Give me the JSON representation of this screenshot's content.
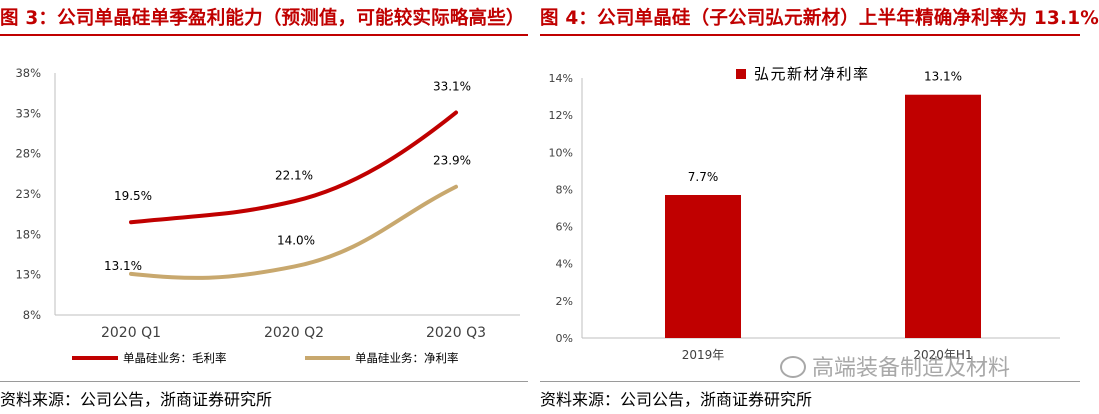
{
  "figures": [
    {
      "title": "图 3：公司单晶硅单季盈利能力（预测值，可能较实际略高些）",
      "source": "资料来源：公司公告，浙商证券研究所"
    },
    {
      "title": "图 4：公司单晶硅（子公司弘元新材）上半年精确净利率为 13.1%",
      "source": "资料来源：公司公告，浙商证券研究所"
    }
  ],
  "watermark": "高端装备制造及材料",
  "colors": {
    "accent_red": "#c00000",
    "line_gold": "#c8a86e",
    "grid": "#d9d9d9",
    "axis": "#bfbfbf"
  },
  "chart_data": [
    {
      "type": "line",
      "categories": [
        "2020 Q1",
        "2020 Q2",
        "2020 Q3"
      ],
      "series": [
        {
          "name": "单晶硅业务：毛利率",
          "values": [
            19.5,
            22.1,
            33.1
          ],
          "labels": [
            "19.5%",
            "22.1%",
            "33.1%"
          ],
          "color": "#c00000"
        },
        {
          "name": "单晶硅业务：净利率",
          "values": [
            13.1,
            14.0,
            23.9
          ],
          "labels": [
            "13.1%",
            "14.0%",
            "23.9%"
          ],
          "color": "#c8a86e"
        }
      ],
      "yticks": [
        "8%",
        "13%",
        "18%",
        "23%",
        "28%",
        "33%",
        "38%"
      ],
      "ylim": [
        8,
        38
      ],
      "smooth": true,
      "grid": false,
      "legend": "bottom"
    },
    {
      "type": "bar",
      "categories": [
        "2019年",
        "2020年H1"
      ],
      "series": [
        {
          "name": "弘元新材净利率",
          "values": [
            7.7,
            13.1
          ],
          "labels": [
            "7.7%",
            "13.1%"
          ],
          "color": "#c00000"
        }
      ],
      "yticks": [
        "0%",
        "2%",
        "4%",
        "6%",
        "8%",
        "10%",
        "12%",
        "14%"
      ],
      "ylim": [
        0,
        14
      ],
      "grid": false,
      "legend": "top"
    }
  ]
}
